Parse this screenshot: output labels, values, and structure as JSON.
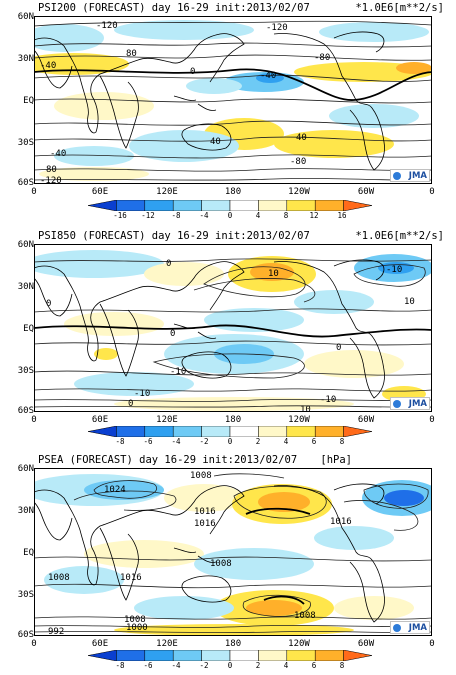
{
  "panels": [
    {
      "title": "PSI200 (FORECAST) day 16-29 init:2013/02/07",
      "units": "*1.0E6[m**2/s]",
      "lat_labels": [
        "60N",
        "30N",
        "EQ",
        "30S",
        "60S"
      ],
      "lon_labels": [
        "0",
        "60E",
        "120E",
        "180",
        "120W",
        "60W",
        "0"
      ],
      "colorbar_ticks": [
        "-16",
        "-12",
        "-8",
        "-4",
        "0",
        "4",
        "8",
        "12",
        "16"
      ],
      "contour_labels": [
        "-120",
        "-120",
        "-40",
        "80",
        "0",
        "-40",
        "-80",
        "-40",
        "40",
        "40",
        "-80",
        "80",
        "-120"
      ],
      "logo": "JMA"
    },
    {
      "title": "PSI850 (FORECAST) day 16-29 init:2013/02/07",
      "units": "*1.0E6[m**2/s]",
      "lat_labels": [
        "60N",
        "30N",
        "EQ",
        "30S",
        "60S"
      ],
      "lon_labels": [
        "0",
        "60E",
        "120E",
        "180",
        "120W",
        "60W",
        "0"
      ],
      "colorbar_ticks": [
        "-8",
        "-6",
        "-4",
        "-2",
        "0",
        "2",
        "4",
        "6",
        "8"
      ],
      "contour_labels": [
        "0",
        "10",
        "-10",
        "10",
        "0",
        "0",
        "-10",
        "-10",
        "0",
        "-10",
        "10",
        "0"
      ],
      "logo": "JMA"
    },
    {
      "title": "PSEA (FORECAST) day 16-29 init:2013/02/07",
      "units": "[hPa]",
      "lat_labels": [
        "60N",
        "30N",
        "EQ",
        "30S",
        "60S"
      ],
      "lon_labels": [
        "0",
        "60E",
        "120E",
        "180",
        "120W",
        "60W",
        "0"
      ],
      "colorbar_ticks": [
        "-8",
        "-6",
        "-4",
        "-2",
        "0",
        "2",
        "4",
        "6",
        "8"
      ],
      "contour_labels": [
        "1024",
        "1008",
        "1016",
        "1016",
        "1016",
        "1008",
        "1008",
        "1016",
        "1008",
        "1000",
        "992",
        "1008"
      ],
      "logo": "JMA"
    }
  ],
  "colors": {
    "cb": [
      "#1f6fe8",
      "#2fa0f0",
      "#6ecaf5",
      "#b8eaf8",
      "#ffffff",
      "#fff8c8",
      "#ffe64b",
      "#ffb02a",
      "#ff6a1a"
    ],
    "land": "#000000"
  }
}
